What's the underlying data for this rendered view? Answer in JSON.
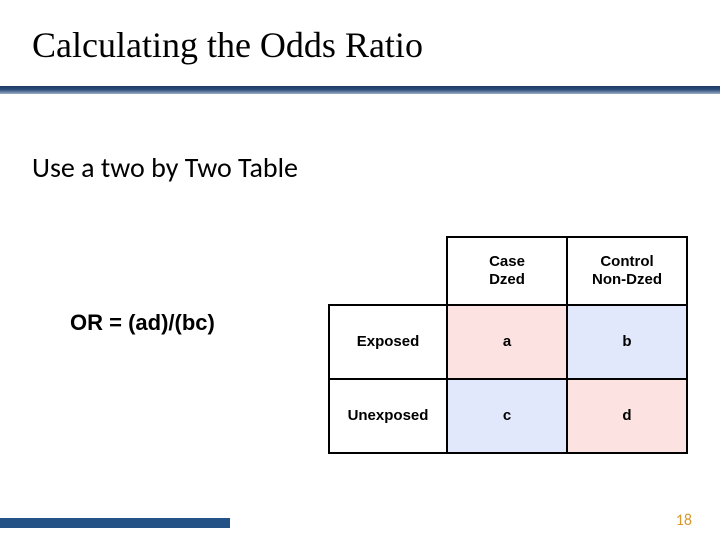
{
  "title": "Calculating the Odds Ratio",
  "subtitle": "Use a two by Two Table",
  "formula": "OR = (ad)/(bc)",
  "table": {
    "col1_line1": "Case",
    "col1_line2": "Dzed",
    "col2_line1": "Control",
    "col2_line2": "Non-Dzed",
    "row1": "Exposed",
    "row2": "Unexposed",
    "a": "a",
    "b": "b",
    "c": "c",
    "d": "d",
    "cell_a_bg": "#fde2e2",
    "cell_b_bg": "#e2e8fb",
    "cell_c_bg": "#e2e8fb",
    "cell_d_bg": "#fde2e2"
  },
  "page_number": "18",
  "colors": {
    "underline_top": "#1f3a63",
    "underline_bottom": "#9bb0c6",
    "footer_bar": "#245186",
    "page_num": "#d69a2d",
    "border": "#000000",
    "background": "#ffffff"
  },
  "typography": {
    "title_font": "Times New Roman",
    "title_size_pt": 36,
    "subtitle_font": "Calibri",
    "subtitle_size_pt": 28,
    "formula_font": "Arial",
    "formula_size_pt": 22,
    "table_font": "Arial",
    "table_size_pt": 15
  }
}
